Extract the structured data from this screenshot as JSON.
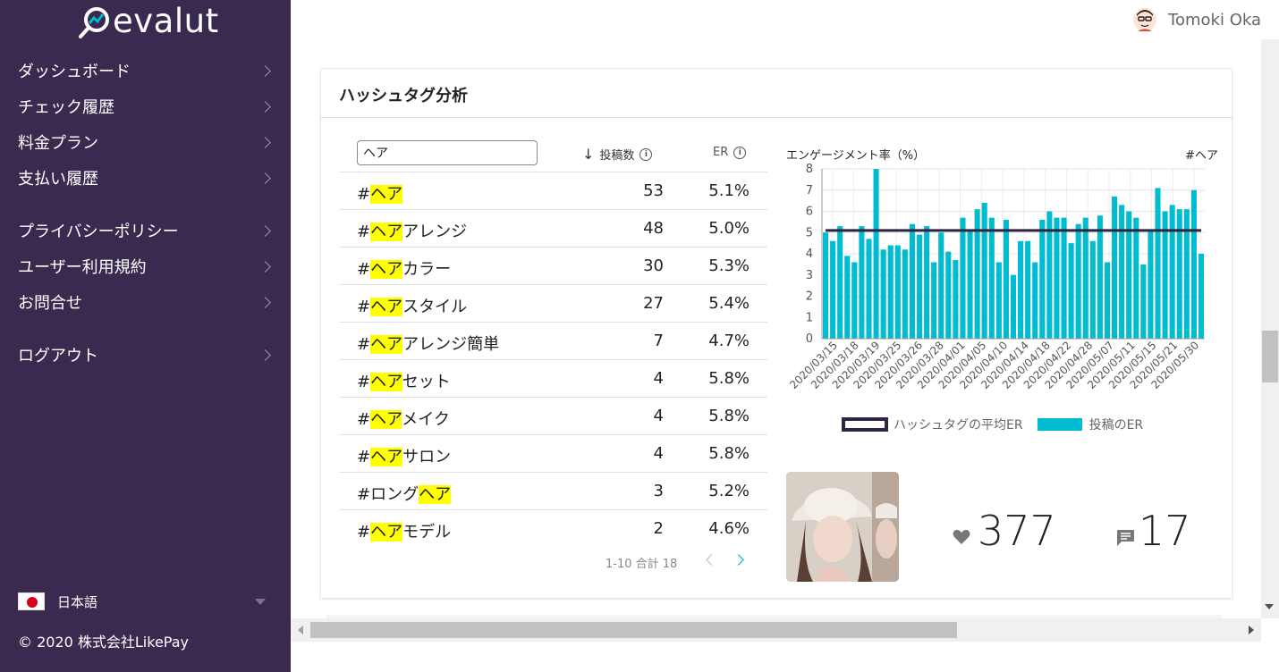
{
  "app": {
    "logo_text": "evalut"
  },
  "user": {
    "name": "Tomoki Oka"
  },
  "sidebar": {
    "items": [
      {
        "label": "ダッシュボード"
      },
      {
        "label": "チェック履歴"
      },
      {
        "label": "料金プラン"
      },
      {
        "label": "支払い履歴"
      },
      {
        "label": "プライバシーポリシー"
      },
      {
        "label": "ユーザー利用規約"
      },
      {
        "label": "お問合せ"
      },
      {
        "label": "ログアウト"
      }
    ],
    "language": "日本語",
    "copyright": "© 2020 株式会社LikePay"
  },
  "card": {
    "title": "ハッシュタグ分析",
    "search_value": "ヘア",
    "col_posts": "投稿数",
    "col_er": "ER",
    "rows": [
      {
        "prefix": "#",
        "highlight": "ヘア",
        "suffix": "",
        "posts": "53",
        "er": "5.1%"
      },
      {
        "prefix": "#",
        "highlight": "ヘア",
        "suffix": "アレンジ",
        "posts": "48",
        "er": "5.0%"
      },
      {
        "prefix": "#",
        "highlight": "ヘア",
        "suffix": "カラー",
        "posts": "30",
        "er": "5.3%"
      },
      {
        "prefix": "#",
        "highlight": "ヘア",
        "suffix": "スタイル",
        "posts": "27",
        "er": "5.4%"
      },
      {
        "prefix": "#",
        "highlight": "ヘア",
        "suffix": "アレンジ簡単",
        "posts": "7",
        "er": "4.7%"
      },
      {
        "prefix": "#",
        "highlight": "ヘア",
        "suffix": "セット",
        "posts": "4",
        "er": "5.8%"
      },
      {
        "prefix": "#",
        "highlight": "ヘア",
        "suffix": "メイク",
        "posts": "4",
        "er": "5.8%"
      },
      {
        "prefix": "#",
        "highlight": "ヘア",
        "suffix": "サロン",
        "posts": "4",
        "er": "5.8%"
      },
      {
        "prefix": "#ロング",
        "highlight": "ヘア",
        "suffix": "",
        "posts": "3",
        "er": "5.2%"
      },
      {
        "prefix": "#",
        "highlight": "ヘア",
        "suffix": "モデル",
        "posts": "2",
        "er": "4.6%"
      }
    ],
    "pager": "1-10 合計 18",
    "post_stats": {
      "likes": "377",
      "comments": "17"
    }
  },
  "chart_data": {
    "type": "bar",
    "title": "エンゲージメント率（%）",
    "tag_label": "#ヘア",
    "ylim": [
      0,
      8
    ],
    "yticks": [
      0,
      1,
      2,
      3,
      4,
      5,
      6,
      7,
      8
    ],
    "x_tick_labels": [
      "2020/03/15",
      "2020/03/18",
      "2020/03/19",
      "2020/03/25",
      "2020/03/26",
      "2020/03/28",
      "2020/04/01",
      "2020/04/05",
      "2020/04/10",
      "2020/04/14",
      "2020/04/18",
      "2020/04/22",
      "2020/04/28",
      "2020/05/07",
      "2020/05/11",
      "2020/05/15",
      "2020/05/21",
      "2020/05/30"
    ],
    "series": [
      {
        "name": "投稿のER",
        "color": "#00bcd0",
        "values": [
          5.0,
          4.6,
          5.3,
          3.9,
          3.6,
          5.3,
          4.7,
          8.0,
          4.2,
          4.4,
          4.4,
          4.2,
          5.4,
          4.9,
          5.3,
          3.6,
          5.0,
          4.1,
          3.7,
          5.7,
          5.1,
          6.1,
          6.4,
          5.7,
          3.6,
          5.6,
          3.0,
          4.6,
          4.6,
          3.6,
          5.6,
          6.0,
          5.7,
          5.7,
          4.5,
          5.4,
          5.7,
          4.6,
          5.8,
          3.6,
          6.7,
          6.3,
          6.0,
          5.7,
          3.5,
          5.1,
          7.1,
          6.0,
          6.3,
          6.1,
          6.1,
          7.0,
          4.0
        ]
      },
      {
        "name": "ハッシュタグの平均ER",
        "color": "#2f2540",
        "type": "line",
        "value": 5.1
      }
    ],
    "grid": true,
    "legend_position": "bottom"
  }
}
